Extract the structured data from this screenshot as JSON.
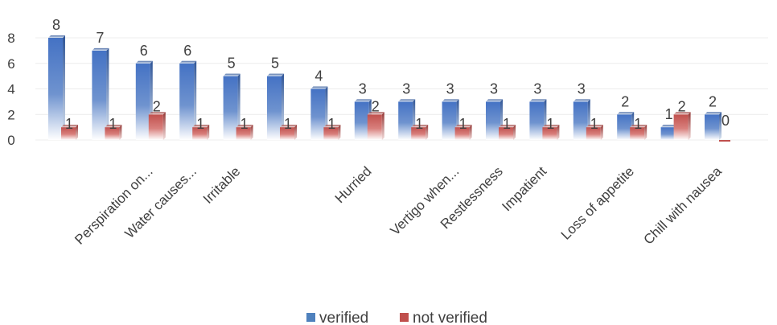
{
  "chart_data": {
    "type": "bar",
    "categories": [
      "",
      "",
      "Perspiration on...",
      "Water causes...",
      "Irritable",
      "",
      "",
      "Hurried",
      "",
      "Vertigo when...",
      "Restlessness",
      "Impatient",
      "",
      "Loss of appetite",
      "",
      "Chill with nausea"
    ],
    "series": [
      {
        "name": "verified",
        "values": [
          8,
          7,
          6,
          6,
          5,
          5,
          4,
          3,
          3,
          3,
          3,
          3,
          3,
          2,
          1,
          2
        ],
        "color": "#4f81bd"
      },
      {
        "name": "not verified",
        "values": [
          1,
          1,
          2,
          1,
          1,
          1,
          1,
          2,
          1,
          1,
          1,
          1,
          1,
          1,
          2,
          0
        ],
        "color": "#c0504d"
      }
    ],
    "y_ticks": [
      0,
      2,
      4,
      6,
      8
    ],
    "ylim": [
      0,
      8
    ],
    "grid": true,
    "legend_position": "bottom",
    "data_labels": true
  }
}
